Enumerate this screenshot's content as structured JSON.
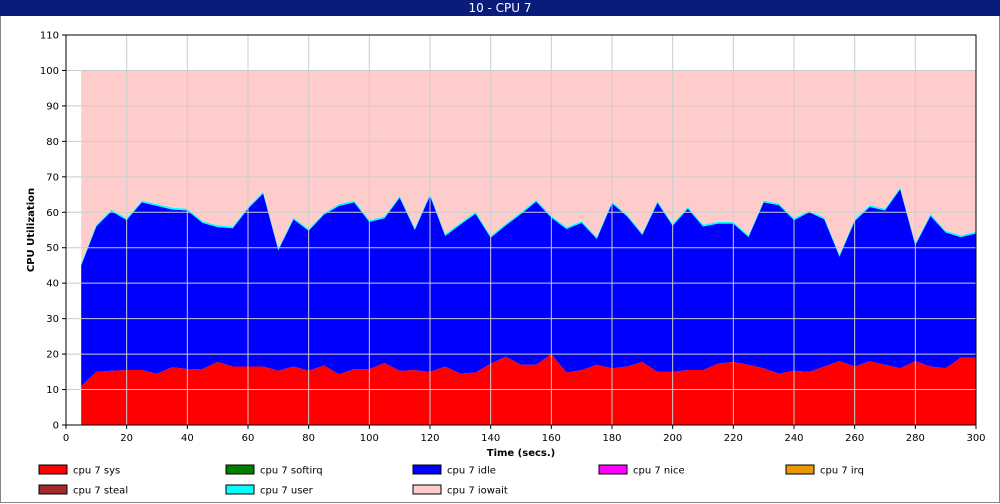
{
  "window": {
    "title": "10 - CPU 7"
  },
  "chart_data": {
    "type": "area",
    "stacked": true,
    "title": "10 - CPU 7",
    "xlabel": "Time (secs.)",
    "ylabel": "CPU Utilization",
    "xlim": [
      0,
      300
    ],
    "ylim": [
      0,
      110
    ],
    "xticks": [
      0,
      20,
      40,
      60,
      80,
      100,
      120,
      140,
      160,
      180,
      200,
      220,
      240,
      260,
      280,
      300
    ],
    "yticks": [
      0,
      10,
      20,
      30,
      40,
      50,
      60,
      70,
      80,
      90,
      100,
      110
    ],
    "grid": true,
    "legend_position": "bottom",
    "x": [
      5,
      10,
      15,
      20,
      25,
      30,
      35,
      40,
      45,
      50,
      55,
      60,
      65,
      70,
      75,
      80,
      85,
      90,
      95,
      100,
      105,
      110,
      115,
      120,
      125,
      130,
      135,
      140,
      145,
      150,
      155,
      160,
      165,
      170,
      175,
      180,
      185,
      190,
      195,
      200,
      205,
      210,
      215,
      220,
      225,
      230,
      235,
      240,
      245,
      250,
      255,
      260,
      265,
      270,
      275,
      280,
      285,
      290,
      295,
      300
    ],
    "series": [
      {
        "name": "cpu 7 sys",
        "color": "#ff0000",
        "values": [
          11,
          15,
          15.3,
          15.5,
          15.5,
          14.5,
          16.3,
          15.8,
          15.8,
          17.8,
          16.5,
          16.5,
          16.5,
          15.3,
          16.5,
          15.3,
          16.8,
          14.3,
          15.8,
          15.8,
          17.5,
          15.3,
          15.5,
          15,
          16.5,
          14.5,
          14.8,
          17.3,
          19.3,
          17,
          17,
          20,
          14.8,
          15.5,
          17,
          16,
          16.5,
          17.8,
          15,
          15,
          15.5,
          15.5,
          17.3,
          17.8,
          17,
          16,
          14.5,
          15.3,
          15,
          16.5,
          18,
          16.5,
          18,
          17,
          16,
          18,
          16.5,
          16,
          19,
          19
        ]
      },
      {
        "name": "cpu 7 softirq",
        "color": "#008000",
        "values": [
          0,
          0,
          0,
          0,
          0,
          0,
          0,
          0,
          0,
          0,
          0,
          0,
          0,
          0,
          0,
          0,
          0,
          0,
          0,
          0,
          0,
          0,
          0,
          0,
          0,
          0,
          0,
          0,
          0,
          0,
          0,
          0,
          0,
          0,
          0,
          0,
          0,
          0,
          0,
          0,
          0,
          0,
          0,
          0,
          0,
          0,
          0,
          0,
          0,
          0,
          0,
          0,
          0,
          0,
          0,
          0,
          0,
          0,
          0,
          0
        ]
      },
      {
        "name": "cpu 7 idle",
        "color": "#0000ff",
        "values": [
          34,
          41,
          45,
          42.3,
          47.3,
          47.3,
          44.5,
          44.7,
          41.2,
          38,
          39,
          44.5,
          48.8,
          34,
          41.5,
          39.5,
          42.5,
          47.5,
          47,
          41.5,
          40.8,
          48.8,
          39.5,
          49.7,
          36.8,
          42,
          44.8,
          35.5,
          37,
          42.5,
          46,
          38.5,
          40.5,
          41.5,
          35.5,
          46.5,
          42.3,
          35.8,
          47.7,
          41.2,
          45.5,
          40.5,
          39.5,
          39,
          36,
          46.8,
          47.5,
          42.5,
          45,
          41.5,
          29.5,
          41,
          43.5,
          43.5,
          50.5,
          32.7,
          42.5,
          38.3,
          34,
          35
        ]
      },
      {
        "name": "cpu 7 nice",
        "color": "#ff00ff",
        "values": [
          0,
          0,
          0,
          0,
          0,
          0,
          0,
          0,
          0,
          0,
          0,
          0,
          0,
          0,
          0,
          0,
          0,
          0,
          0,
          0,
          0,
          0,
          0,
          0,
          0,
          0,
          0,
          0,
          0,
          0,
          0,
          0,
          0,
          0,
          0,
          0,
          0,
          0,
          0,
          0,
          0,
          0,
          0,
          0,
          0,
          0,
          0,
          0,
          0,
          0,
          0,
          0,
          0,
          0,
          0,
          0,
          0,
          0,
          0,
          0
        ]
      },
      {
        "name": "cpu 7 irq",
        "color": "#e69900",
        "values": [
          0,
          0,
          0,
          0,
          0,
          0,
          0,
          0,
          0,
          0,
          0,
          0,
          0,
          0,
          0,
          0,
          0,
          0,
          0,
          0,
          0,
          0,
          0,
          0,
          0,
          0,
          0,
          0,
          0,
          0,
          0,
          0,
          0,
          0,
          0,
          0,
          0,
          0,
          0,
          0,
          0,
          0,
          0,
          0,
          0,
          0,
          0,
          0,
          0,
          0,
          0,
          0,
          0,
          0,
          0,
          0,
          0,
          0,
          0,
          0
        ]
      },
      {
        "name": "cpu 7 steal",
        "color": "#a52a2a",
        "values": [
          0,
          0,
          0,
          0,
          0,
          0,
          0,
          0,
          0,
          0,
          0,
          0,
          0,
          0,
          0,
          0,
          0,
          0,
          0,
          0,
          0,
          0,
          0,
          0,
          0,
          0,
          0,
          0,
          0,
          0,
          0,
          0,
          0,
          0,
          0,
          0,
          0,
          0,
          0,
          0,
          0,
          0,
          0,
          0,
          0,
          0,
          0,
          0,
          0,
          0,
          0,
          0,
          0,
          0,
          0,
          0,
          0,
          0,
          0,
          0
        ]
      },
      {
        "name": "cpu 7 user",
        "color": "#00ffff",
        "values": [
          0.5,
          0.5,
          0.5,
          0.5,
          0.5,
          0.5,
          0.5,
          0.5,
          0.5,
          0.5,
          0.5,
          0.5,
          0.5,
          0.5,
          0.5,
          0.5,
          0.5,
          0.5,
          0.5,
          0.5,
          0.5,
          0.5,
          0.5,
          0.5,
          0.5,
          0.5,
          0.5,
          0.5,
          0.5,
          0.5,
          0.5,
          0.5,
          0.5,
          0.5,
          0.5,
          0.5,
          0.5,
          0.5,
          0.5,
          0.5,
          0.5,
          0.5,
          0.5,
          0.5,
          0.5,
          0.5,
          0.5,
          0.5,
          0.5,
          0.5,
          0.5,
          0.5,
          0.5,
          0.5,
          0.5,
          0.5,
          0.5,
          0.5,
          0.5,
          0.5
        ]
      },
      {
        "name": "cpu 7 iowait",
        "color": "#ffcccc",
        "values": [
          54.5,
          43.5,
          39.2,
          41.7,
          36.7,
          37.7,
          38.7,
          39,
          42.5,
          43.7,
          44,
          38.5,
          34.2,
          50.2,
          41.5,
          44.7,
          40.2,
          37.7,
          36.7,
          42.2,
          41.2,
          35.4,
          44.5,
          34.8,
          46.2,
          43,
          39.9,
          46.7,
          43.2,
          40,
          36.5,
          41,
          44.2,
          42.5,
          47,
          37,
          40.7,
          45.9,
          36.8,
          43.3,
          38.5,
          43.5,
          42.7,
          42.7,
          46.5,
          36.7,
          37.5,
          41.7,
          39.5,
          41.5,
          52,
          42,
          38,
          39,
          33,
          48.8,
          40.5,
          45.2,
          46.5,
          45.5
        ]
      }
    ]
  }
}
